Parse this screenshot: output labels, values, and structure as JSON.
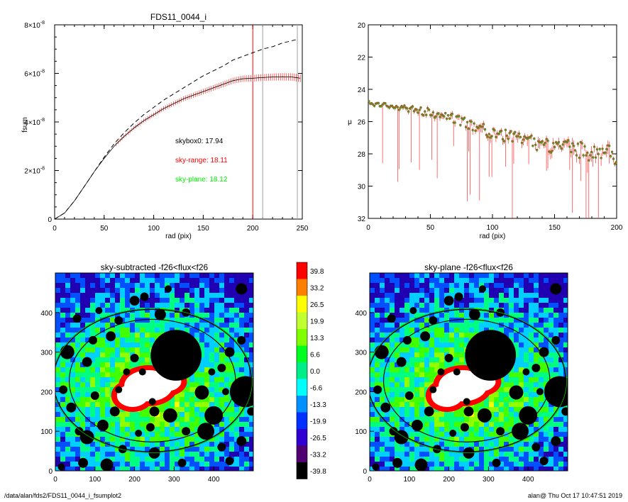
{
  "footer": {
    "left": "/data/alan/fds2/FDS11_0044_i_fsumplot2",
    "right": "alan@  Thu Oct 17 10:47:51 2019"
  },
  "colors": {
    "black": "#000000",
    "red": "#ff0000",
    "green": "#00ee00",
    "gray": "#a0a0a0",
    "errorbar": "#ff2020"
  },
  "chart_data": [
    {
      "type": "line",
      "title": "FDS11_0044_i",
      "xlabel": "rad (pix)",
      "ylabel": "fsum",
      "xlim": [
        0,
        250
      ],
      "ylim": [
        0,
        8e-08
      ],
      "x_ticks": [
        "0",
        "50",
        "100",
        "150",
        "200",
        "250"
      ],
      "y_ticks": [
        {
          "value": 0,
          "mantissa": "0",
          "exp": ""
        },
        {
          "value": 2e-08,
          "mantissa": "2×10",
          "exp": "-8"
        },
        {
          "value": 4e-08,
          "mantissa": "4×10",
          "exp": "-8"
        },
        {
          "value": 6e-08,
          "mantissa": "6×10",
          "exp": "-8"
        },
        {
          "value": 8e-08,
          "mantissa": "8×10",
          "exp": "-8"
        }
      ],
      "series": [
        {
          "style": "dashed",
          "color": "#000000",
          "x": [
            0,
            10,
            20,
            30,
            40,
            50,
            60,
            70,
            80,
            90,
            100,
            110,
            120,
            130,
            140,
            150,
            160,
            170,
            180,
            190,
            200,
            210,
            220,
            230,
            240,
            245
          ],
          "y": [
            0,
            2.5e-09,
            7.5e-09,
            1.35e-08,
            1.95e-08,
            2.55e-08,
            3.1e-08,
            3.55e-08,
            3.95e-08,
            4.3e-08,
            4.6e-08,
            4.9e-08,
            5.15e-08,
            5.4e-08,
            5.65e-08,
            5.9e-08,
            6.1e-08,
            6.3e-08,
            6.55e-08,
            6.7e-08,
            6.85e-08,
            7e-08,
            7.1e-08,
            7.25e-08,
            7.35e-08,
            7.4e-08
          ]
        },
        {
          "style": "errorbar",
          "color": "#ff2020",
          "x": [
            0,
            10,
            20,
            30,
            40,
            50,
            60,
            70,
            80,
            90,
            100,
            110,
            120,
            130,
            140,
            150,
            160,
            170,
            180,
            190,
            200,
            210,
            220,
            230,
            240,
            248
          ],
          "y": [
            0,
            2.5e-09,
            7.5e-09,
            1.35e-08,
            1.95e-08,
            2.5e-08,
            3e-08,
            3.4e-08,
            3.75e-08,
            4.05e-08,
            4.3e-08,
            4.55e-08,
            4.75e-08,
            4.95e-08,
            5.1e-08,
            5.25e-08,
            5.4e-08,
            5.55e-08,
            5.7e-08,
            5.78e-08,
            5.8e-08,
            5.83e-08,
            5.85e-08,
            5.86e-08,
            5.85e-08,
            5.8e-08
          ]
        }
      ],
      "vlines": [
        {
          "x": 200,
          "color": "#ff0000"
        },
        {
          "x": 210,
          "color": "#a0a0a0"
        },
        {
          "x": 245,
          "color": "#a0a0a0"
        }
      ],
      "annotations": [
        {
          "text": "skybox0: 17.94",
          "color": "#000000"
        },
        {
          "text": "sky-range: 18.11",
          "color": "#ff0000"
        },
        {
          "text": "sky-plane: 18.12",
          "color": "#00ee00"
        }
      ]
    },
    {
      "type": "scatter",
      "title": "",
      "xlabel": "rad (pix)",
      "ylabel": "μ",
      "xlim": [
        0,
        200
      ],
      "ylim": [
        32,
        20
      ],
      "x_ticks": [
        "0",
        "50",
        "100",
        "150",
        "200"
      ],
      "y_ticks": [
        "20",
        "22",
        "24",
        "26",
        "28",
        "30",
        "32"
      ],
      "trend": {
        "x": [
          0,
          20,
          40,
          60,
          80,
          100,
          120,
          140,
          160,
          180,
          200
        ],
        "y": [
          24.8,
          25.1,
          25.3,
          25.6,
          26.1,
          26.7,
          27.1,
          27.4,
          27.6,
          27.9,
          28.1
        ]
      }
    },
    {
      "type": "heatmap",
      "title": "sky-subtracted -f26<flux<f26",
      "xlim": [
        0,
        500
      ],
      "ylim": [
        0,
        500
      ],
      "x_ticks": [
        "0",
        "100",
        "200",
        "300",
        "400"
      ],
      "y_ticks": [
        "0",
        "100",
        "200",
        "300",
        "400"
      ]
    },
    {
      "type": "heatmap",
      "title": "sky-plane -f26<flux<f26",
      "xlim": [
        0,
        500
      ],
      "ylim": [
        0,
        500
      ],
      "x_ticks": [
        "0",
        "100",
        "200",
        "300",
        "400"
      ],
      "y_ticks": [
        "0",
        "100",
        "200",
        "300",
        "400"
      ]
    },
    {
      "type": "colorbar",
      "labels": [
        "39.8",
        "33.2",
        "26.5",
        "19.9",
        "13.3",
        "6.6",
        "0.0",
        "-6.6",
        "-13.3",
        "-19.9",
        "-26.5",
        "-33.2",
        "-39.8"
      ],
      "colors": [
        "#ff0000",
        "#ff8000",
        "#ffff00",
        "#c0ff30",
        "#80ff00",
        "#00ff20",
        "#00ee88",
        "#00ffff",
        "#0090ff",
        "#0030ff",
        "#3000d0",
        "#500070",
        "#000000"
      ]
    }
  ]
}
